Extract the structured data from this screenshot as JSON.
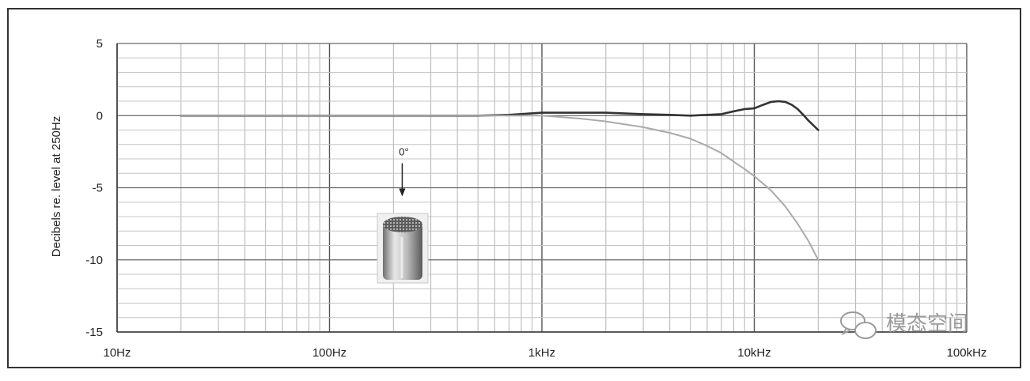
{
  "chart_data": {
    "type": "line",
    "title": "",
    "xlabel": "",
    "ylabel": "Decibels re. level at 250Hz",
    "xscale": "log",
    "xlim": [
      10,
      100000
    ],
    "ylim": [
      -15,
      5
    ],
    "grid": true,
    "legend": "none",
    "x_tick_labels": [
      "10Hz",
      "100Hz",
      "1kHz",
      "10kHz",
      "100kHz"
    ],
    "x_tick_values": [
      10,
      100,
      1000,
      10000,
      100000
    ],
    "y_tick_labels": [
      "5",
      "0",
      "-5",
      "-10",
      "-15"
    ],
    "y_tick_values": [
      5,
      0,
      -5,
      -10,
      -15
    ],
    "series": [
      {
        "color": "#333333",
        "x": [
          20,
          100,
          300,
          500,
          700,
          1000,
          1500,
          2000,
          3000,
          4000,
          5000,
          6000,
          7000,
          8000,
          9000,
          10000,
          11000,
          12000,
          13000,
          14000,
          15000,
          16000,
          17000,
          18000,
          20000
        ],
        "y": [
          0,
          0,
          0,
          0,
          0.05,
          0.2,
          0.2,
          0.2,
          0.1,
          0.05,
          0,
          0.05,
          0.1,
          0.3,
          0.45,
          0.5,
          0.75,
          0.95,
          1.0,
          0.95,
          0.75,
          0.45,
          0.05,
          -0.35,
          -1.0
        ]
      },
      {
        "color": "#aaaaaa",
        "x": [
          20,
          100,
          500,
          1000,
          1500,
          2000,
          3000,
          4000,
          5000,
          6000,
          7000,
          8000,
          9000,
          10000,
          12000,
          14000,
          16000,
          18000,
          20000
        ],
        "y": [
          0,
          0,
          0,
          0,
          -0.2,
          -0.4,
          -0.8,
          -1.2,
          -1.6,
          -2.1,
          -2.6,
          -3.2,
          -3.7,
          -4.2,
          -5.2,
          -6.3,
          -7.5,
          -8.7,
          -10.0
        ]
      }
    ],
    "annotations": [
      {
        "text": "0°",
        "x": 220,
        "y": -3.3
      }
    ]
  },
  "watermark": {
    "text": "模态空间"
  }
}
